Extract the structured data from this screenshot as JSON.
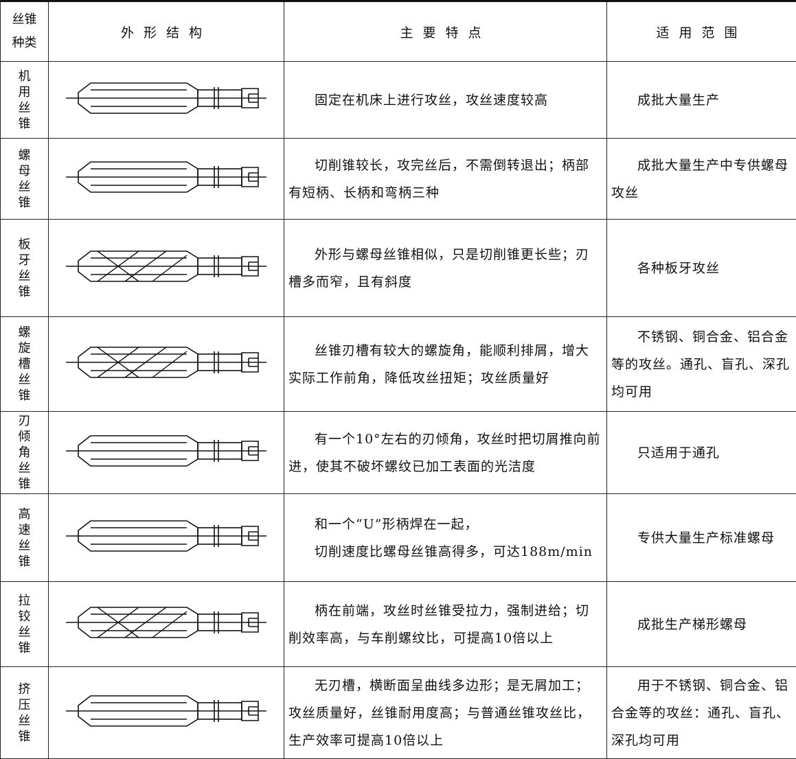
{
  "table": {
    "header": [
      "丝锥种类",
      "外形结构",
      "主要特点",
      "适用范围"
    ],
    "rows": [
      {
        "name": "机用丝锥",
        "features": [
          "固定在机床上进行攻丝，攻丝速度较高"
        ],
        "usage": "成批大量生产"
      },
      {
        "name": "螺母丝锥",
        "features": [
          "切削锥较长，攻完丝后，不需倒转退出；柄部有短柄、长柄和弯柄三种"
        ],
        "usage": "成批大量生产中专供螺母攻丝"
      },
      {
        "name": "板牙丝锥",
        "features": [
          "外形与螺母丝锥相似，只是切削锥更长些；刃槽多而窄，且有斜度"
        ],
        "usage": "各种板牙攻丝"
      },
      {
        "name": "螺旋槽丝锥",
        "features": [
          "丝锥刃槽有较大的螺旋角，能顺利排屑，增大实际工作前角，降低攻丝扭矩；攻丝质量好"
        ],
        "usage": "不锈钢、铜合金、铝合金等的攻丝。通孔、盲孔、深孔均可用"
      },
      {
        "name": "刃倾角丝锥",
        "features": [
          "有一个10°左右的刃倾角，攻丝时把切屑推向前进，使其不破坏螺纹已加工表面的光洁度"
        ],
        "usage": "只适用于通孔"
      },
      {
        "name": "高速丝锥",
        "features": [
          "和一个“U”形柄焊在一起，",
          "切削速度比螺母丝锥高得多，可达188m/min"
        ],
        "usage": "专供大量生产标准螺母"
      },
      {
        "name": "拉铰丝锥",
        "features": [
          "柄在前端，攻丝时丝锥受拉力，强制进给；切削效率高，与车削螺纹比，可提高10倍以上"
        ],
        "usage": "成批生产梯形螺母"
      },
      {
        "name": "挤压丝锥",
        "features": [
          "无刃槽，横断面呈曲线多边形；是无屑加工；攻丝质量好，丝锥耐用度高；与普通丝锥攻丝比，生产效率可提高10倍以上"
        ],
        "usage": "用于不锈钢、铜合金、铝合金等的攻丝：通孔、盲孔、深孔均可用"
      }
    ]
  }
}
